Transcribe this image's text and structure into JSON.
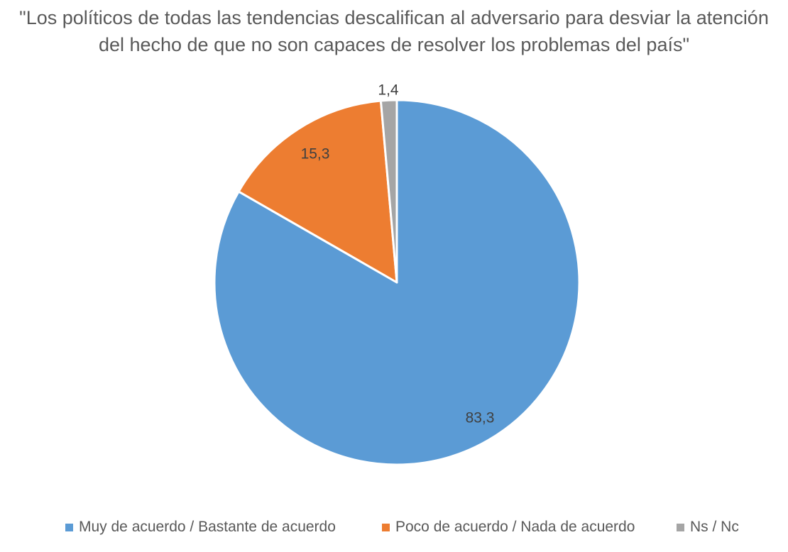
{
  "chart_data": {
    "type": "pie",
    "title": "\"Los políticos de todas las tendencias descalifican al adversario para desviar la atención del hecho de que no son capaces de resolver los problemas del país\"",
    "slices": [
      {
        "name": "Muy de acuerdo / Bastante de acuerdo",
        "value": 83.3,
        "label": "83,3",
        "color": "#5B9BD5"
      },
      {
        "name": "Poco de acuerdo / Nada de acuerdo",
        "value": 15.3,
        "label": "15,3",
        "color": "#ED7D31"
      },
      {
        "name": "Ns / Nc",
        "value": 1.4,
        "label": "1,4",
        "color": "#A5A5A5"
      }
    ],
    "start_angle": "12 o'clock",
    "direction": "clockwise",
    "legend_position": "bottom"
  }
}
